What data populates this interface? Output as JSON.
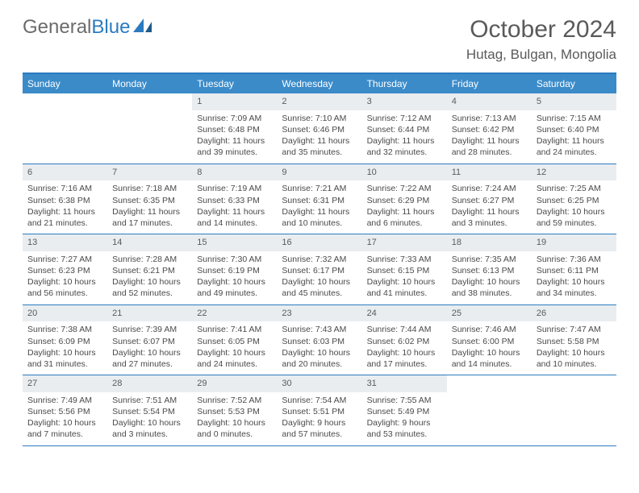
{
  "logo": {
    "text1": "General",
    "text2": "Blue"
  },
  "title": "October 2024",
  "location": "Hutag, Bulgan, Mongolia",
  "colors": {
    "header_bg": "#3b8bc9",
    "header_text": "#ffffff",
    "border": "#2b7bbf",
    "daynum_bg": "#e9edf0",
    "text": "#4a4a4a",
    "logo_gray": "#6b6b6b",
    "logo_blue": "#2b7bbf"
  },
  "typography": {
    "title_fontsize": 30,
    "location_fontsize": 17,
    "dayhead_fontsize": 12,
    "cell_fontsize": 10.5
  },
  "day_headers": [
    "Sunday",
    "Monday",
    "Tuesday",
    "Wednesday",
    "Thursday",
    "Friday",
    "Saturday"
  ],
  "weeks": [
    [
      {
        "n": "",
        "sr": "",
        "ss": "",
        "dl": ""
      },
      {
        "n": "",
        "sr": "",
        "ss": "",
        "dl": ""
      },
      {
        "n": "1",
        "sr": "Sunrise: 7:09 AM",
        "ss": "Sunset: 6:48 PM",
        "dl": "Daylight: 11 hours and 39 minutes."
      },
      {
        "n": "2",
        "sr": "Sunrise: 7:10 AM",
        "ss": "Sunset: 6:46 PM",
        "dl": "Daylight: 11 hours and 35 minutes."
      },
      {
        "n": "3",
        "sr": "Sunrise: 7:12 AM",
        "ss": "Sunset: 6:44 PM",
        "dl": "Daylight: 11 hours and 32 minutes."
      },
      {
        "n": "4",
        "sr": "Sunrise: 7:13 AM",
        "ss": "Sunset: 6:42 PM",
        "dl": "Daylight: 11 hours and 28 minutes."
      },
      {
        "n": "5",
        "sr": "Sunrise: 7:15 AM",
        "ss": "Sunset: 6:40 PM",
        "dl": "Daylight: 11 hours and 24 minutes."
      }
    ],
    [
      {
        "n": "6",
        "sr": "Sunrise: 7:16 AM",
        "ss": "Sunset: 6:38 PM",
        "dl": "Daylight: 11 hours and 21 minutes."
      },
      {
        "n": "7",
        "sr": "Sunrise: 7:18 AM",
        "ss": "Sunset: 6:35 PM",
        "dl": "Daylight: 11 hours and 17 minutes."
      },
      {
        "n": "8",
        "sr": "Sunrise: 7:19 AM",
        "ss": "Sunset: 6:33 PM",
        "dl": "Daylight: 11 hours and 14 minutes."
      },
      {
        "n": "9",
        "sr": "Sunrise: 7:21 AM",
        "ss": "Sunset: 6:31 PM",
        "dl": "Daylight: 11 hours and 10 minutes."
      },
      {
        "n": "10",
        "sr": "Sunrise: 7:22 AM",
        "ss": "Sunset: 6:29 PM",
        "dl": "Daylight: 11 hours and 6 minutes."
      },
      {
        "n": "11",
        "sr": "Sunrise: 7:24 AM",
        "ss": "Sunset: 6:27 PM",
        "dl": "Daylight: 11 hours and 3 minutes."
      },
      {
        "n": "12",
        "sr": "Sunrise: 7:25 AM",
        "ss": "Sunset: 6:25 PM",
        "dl": "Daylight: 10 hours and 59 minutes."
      }
    ],
    [
      {
        "n": "13",
        "sr": "Sunrise: 7:27 AM",
        "ss": "Sunset: 6:23 PM",
        "dl": "Daylight: 10 hours and 56 minutes."
      },
      {
        "n": "14",
        "sr": "Sunrise: 7:28 AM",
        "ss": "Sunset: 6:21 PM",
        "dl": "Daylight: 10 hours and 52 minutes."
      },
      {
        "n": "15",
        "sr": "Sunrise: 7:30 AM",
        "ss": "Sunset: 6:19 PM",
        "dl": "Daylight: 10 hours and 49 minutes."
      },
      {
        "n": "16",
        "sr": "Sunrise: 7:32 AM",
        "ss": "Sunset: 6:17 PM",
        "dl": "Daylight: 10 hours and 45 minutes."
      },
      {
        "n": "17",
        "sr": "Sunrise: 7:33 AM",
        "ss": "Sunset: 6:15 PM",
        "dl": "Daylight: 10 hours and 41 minutes."
      },
      {
        "n": "18",
        "sr": "Sunrise: 7:35 AM",
        "ss": "Sunset: 6:13 PM",
        "dl": "Daylight: 10 hours and 38 minutes."
      },
      {
        "n": "19",
        "sr": "Sunrise: 7:36 AM",
        "ss": "Sunset: 6:11 PM",
        "dl": "Daylight: 10 hours and 34 minutes."
      }
    ],
    [
      {
        "n": "20",
        "sr": "Sunrise: 7:38 AM",
        "ss": "Sunset: 6:09 PM",
        "dl": "Daylight: 10 hours and 31 minutes."
      },
      {
        "n": "21",
        "sr": "Sunrise: 7:39 AM",
        "ss": "Sunset: 6:07 PM",
        "dl": "Daylight: 10 hours and 27 minutes."
      },
      {
        "n": "22",
        "sr": "Sunrise: 7:41 AM",
        "ss": "Sunset: 6:05 PM",
        "dl": "Daylight: 10 hours and 24 minutes."
      },
      {
        "n": "23",
        "sr": "Sunrise: 7:43 AM",
        "ss": "Sunset: 6:03 PM",
        "dl": "Daylight: 10 hours and 20 minutes."
      },
      {
        "n": "24",
        "sr": "Sunrise: 7:44 AM",
        "ss": "Sunset: 6:02 PM",
        "dl": "Daylight: 10 hours and 17 minutes."
      },
      {
        "n": "25",
        "sr": "Sunrise: 7:46 AM",
        "ss": "Sunset: 6:00 PM",
        "dl": "Daylight: 10 hours and 14 minutes."
      },
      {
        "n": "26",
        "sr": "Sunrise: 7:47 AM",
        "ss": "Sunset: 5:58 PM",
        "dl": "Daylight: 10 hours and 10 minutes."
      }
    ],
    [
      {
        "n": "27",
        "sr": "Sunrise: 7:49 AM",
        "ss": "Sunset: 5:56 PM",
        "dl": "Daylight: 10 hours and 7 minutes."
      },
      {
        "n": "28",
        "sr": "Sunrise: 7:51 AM",
        "ss": "Sunset: 5:54 PM",
        "dl": "Daylight: 10 hours and 3 minutes."
      },
      {
        "n": "29",
        "sr": "Sunrise: 7:52 AM",
        "ss": "Sunset: 5:53 PM",
        "dl": "Daylight: 10 hours and 0 minutes."
      },
      {
        "n": "30",
        "sr": "Sunrise: 7:54 AM",
        "ss": "Sunset: 5:51 PM",
        "dl": "Daylight: 9 hours and 57 minutes."
      },
      {
        "n": "31",
        "sr": "Sunrise: 7:55 AM",
        "ss": "Sunset: 5:49 PM",
        "dl": "Daylight: 9 hours and 53 minutes."
      },
      {
        "n": "",
        "sr": "",
        "ss": "",
        "dl": ""
      },
      {
        "n": "",
        "sr": "",
        "ss": "",
        "dl": ""
      }
    ]
  ]
}
